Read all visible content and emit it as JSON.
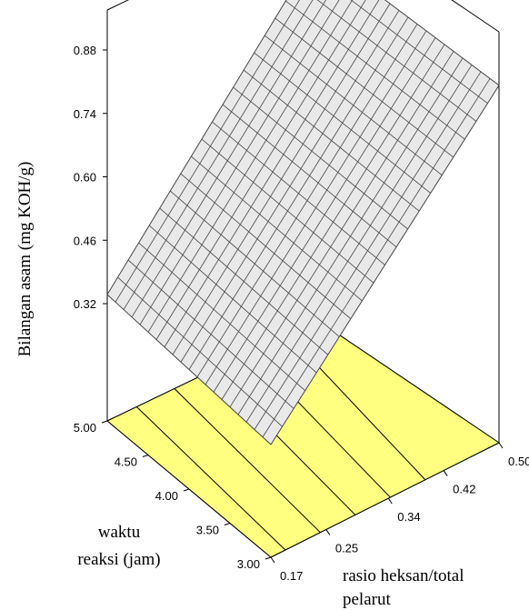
{
  "chart_data": {
    "type": "surface-3d",
    "title": "",
    "zlabel": "Bilangan asam (mg KOH/g)",
    "xlabel_lines": [
      "rasio heksan/total",
      "pelarut"
    ],
    "ylabel_lines": [
      "waktu",
      "reaksi (jam)"
    ],
    "x_ticks": [
      "0.17",
      "0.25",
      "0.34",
      "0.42",
      "0.50"
    ],
    "y_ticks": [
      "3.00",
      "3.50",
      "4.00",
      "4.50",
      "5.00"
    ],
    "z_ticks": [
      "0.32",
      "0.46",
      "0.60",
      "0.74",
      "0.88"
    ],
    "xlim": [
      0.17,
      0.5
    ],
    "ylim": [
      3.0,
      5.0
    ],
    "zlim": [
      0.32,
      0.88
    ],
    "surface": {
      "corners": [
        {
          "x": 0.17,
          "y": 5.0,
          "z": 0.34
        },
        {
          "x": 0.5,
          "y": 5.0,
          "z": 0.88
        },
        {
          "x": 0.17,
          "y": 3.0,
          "z": 0.31
        },
        {
          "x": 0.5,
          "y": 3.0,
          "z": 0.85
        }
      ],
      "grid_divisions": 20
    },
    "contour_count": 5,
    "colors": {
      "surface_fill": "#e9e9e9",
      "surface_grid": "#444444",
      "floor_fill": "#ffff80",
      "frame": "#000000"
    }
  }
}
